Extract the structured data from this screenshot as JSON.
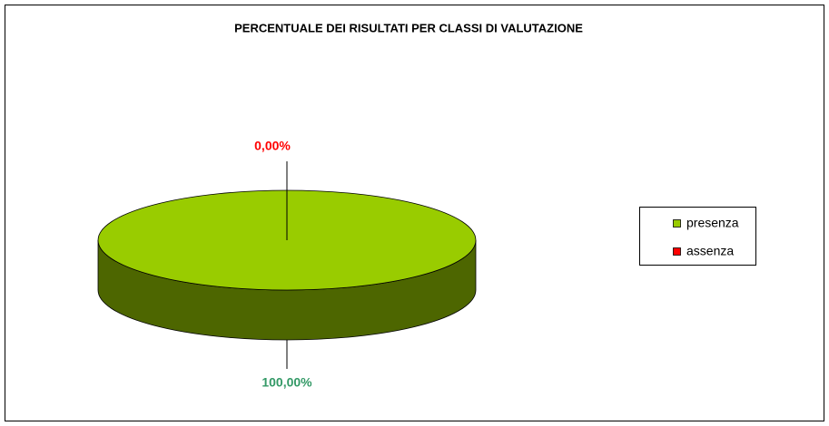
{
  "chart_data": {
    "type": "pie",
    "title": "PERCENTUALE DEI RISULTATI PER CLASSI DI VALUTAZIONE",
    "categories": [
      "presenza",
      "assenza"
    ],
    "values": [
      100,
      0
    ],
    "value_labels": [
      "100,00%",
      "0,00%"
    ],
    "colors": [
      "#99cc00",
      "#ff0000"
    ],
    "value_label_colors": [
      "#339966",
      "#ff0000"
    ],
    "legend": "right"
  }
}
